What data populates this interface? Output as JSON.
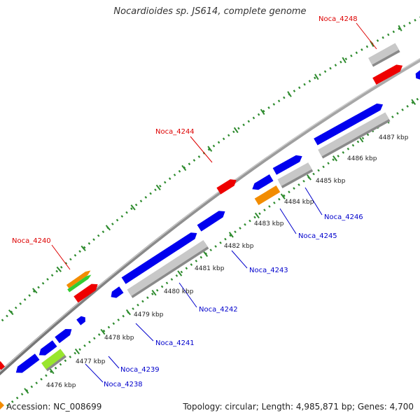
{
  "title": "Nocardioides sp. JS614, complete genome",
  "footer": {
    "accession": "Accession: NC_008699",
    "stats": "Topology: circular; Length: 4,985,871 bp; Genes: 4,700"
  },
  "colors": {
    "backbone": "#888888",
    "tick_dots": "#2e8b2e",
    "forward_gene": "#0000ee",
    "reverse_gene": "#c8c8c8",
    "highlight_red": "#ee0000",
    "highlight_orange": "#f28c00",
    "highlight_lightgreen": "#99e62e",
    "highlight_green": "#33cc33",
    "red_label": "#dd0000",
    "blue_label": "#0000cc",
    "accession_marker": "#f28c00"
  },
  "scale": {
    "unit": "kbp",
    "ticks": [
      {
        "value": 4476,
        "label": "4476 kbp"
      },
      {
        "value": 4477,
        "label": "4477 kbp"
      },
      {
        "value": 4478,
        "label": "4478 kbp"
      },
      {
        "value": 4479,
        "label": "4479 kbp"
      },
      {
        "value": 4480,
        "label": "4480 kbp"
      },
      {
        "value": 4481,
        "label": "4481 kbp"
      },
      {
        "value": 4482,
        "label": "4482 kbp"
      },
      {
        "value": 4483,
        "label": "4483 kbp"
      },
      {
        "value": 4484,
        "label": "4484 kbp"
      },
      {
        "value": 4485,
        "label": "4485 kbp"
      },
      {
        "value": 4486,
        "label": "4486 kbp"
      },
      {
        "value": 4487,
        "label": "4487 kbp"
      }
    ]
  },
  "gene_labels": {
    "outer": [
      "Noca_4240",
      "Noca_4244",
      "Noca_4248"
    ],
    "inner": [
      "Noca_4238",
      "Noca_4239",
      "Noca_4241",
      "Noca_4242",
      "Noca_4243",
      "Noca_4245",
      "Noca_4246"
    ]
  }
}
